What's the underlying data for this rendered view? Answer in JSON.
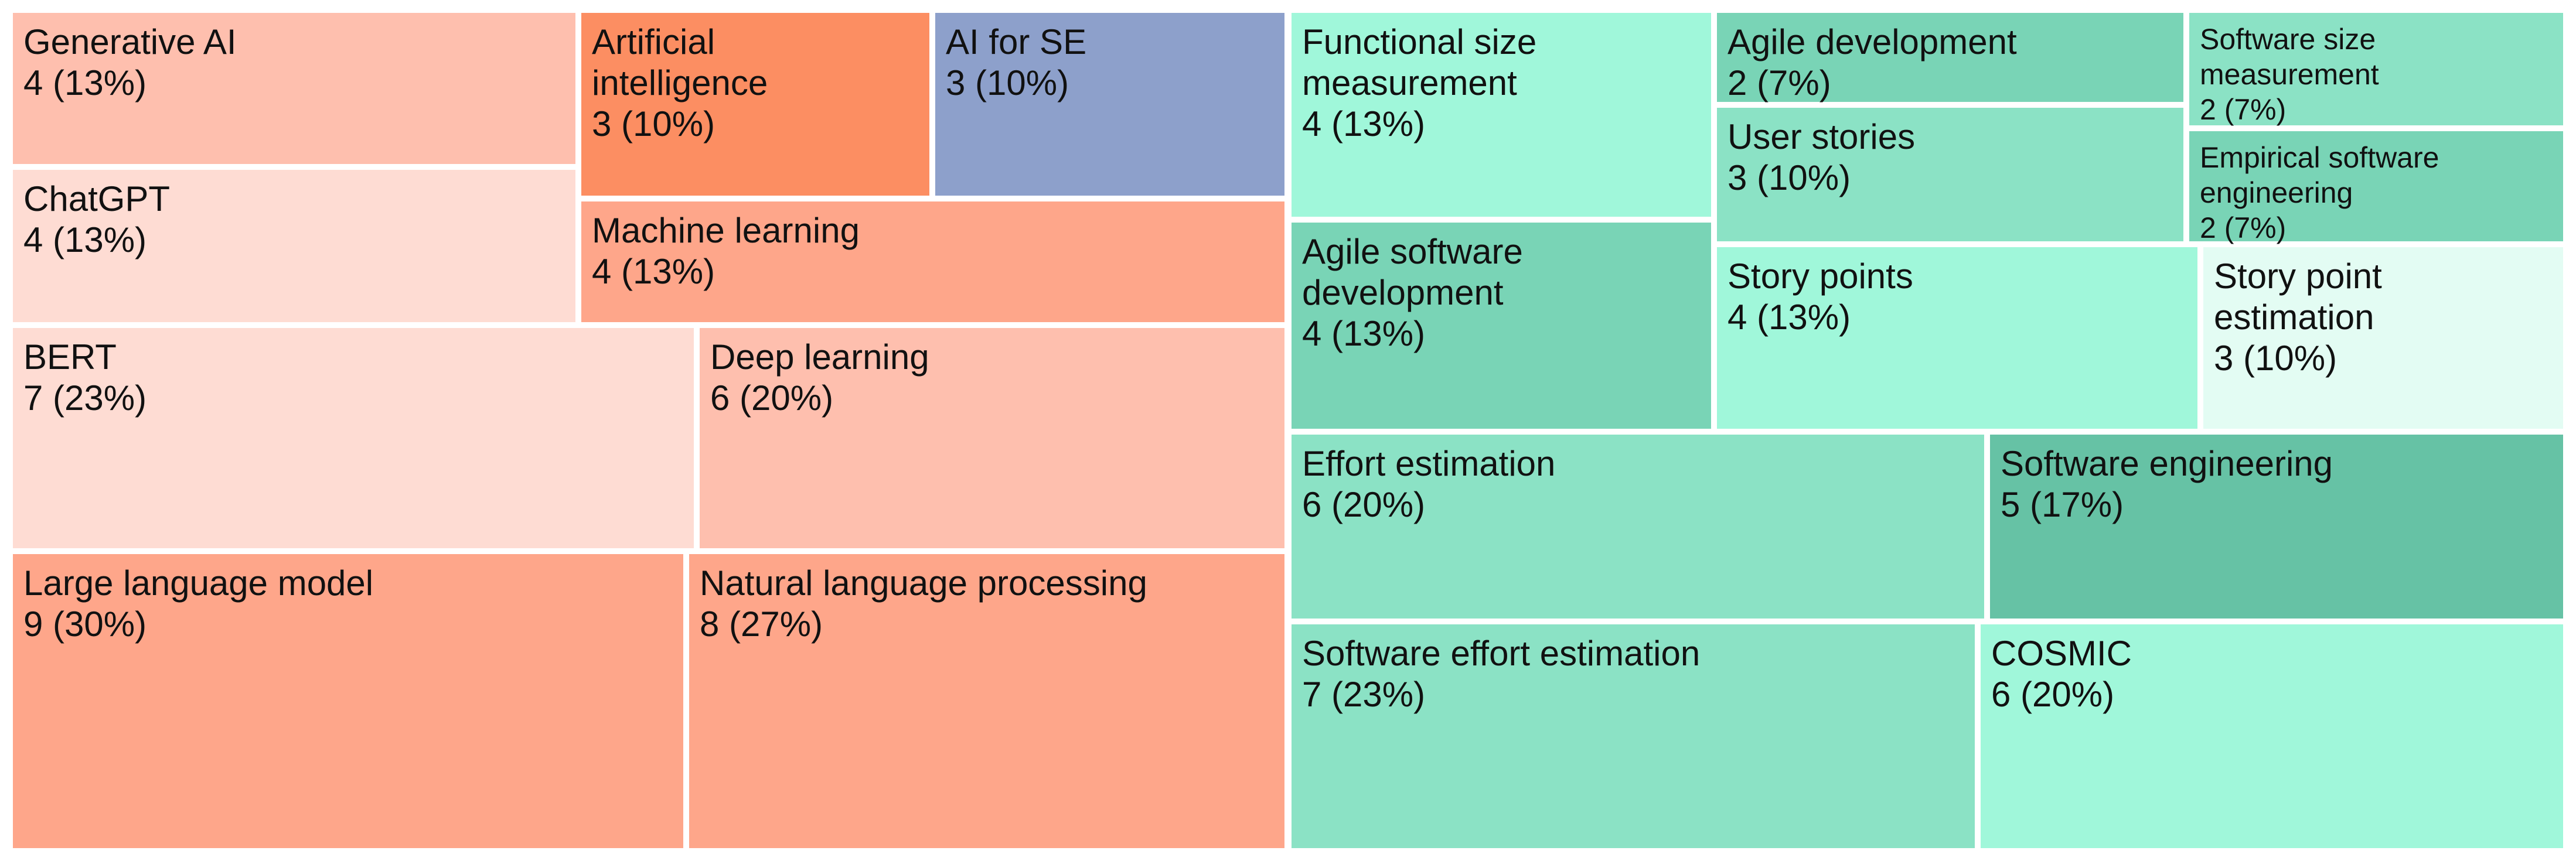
{
  "chart_data": {
    "type": "treemap",
    "title": "",
    "groups": [
      {
        "name": "",
        "tiles": [
          {
            "label": [
              "Generative AI"
            ],
            "value_text": "4  (13%)",
            "value": 4,
            "percent": 13,
            "color": "#FEBFAE"
          },
          {
            "label": [
              "ChatGPT"
            ],
            "value_text": "4  (13%)",
            "value": 4,
            "percent": 13,
            "color": "#FEDCD3"
          },
          {
            "label": [
              "Artificial",
              "intelligence"
            ],
            "value_text": "3  (10%)",
            "value": 3,
            "percent": 10,
            "color": "#FC8E62"
          },
          {
            "label": [
              "AI for SE"
            ],
            "value_text": "3  (10%)",
            "value": 3,
            "percent": 10,
            "color": "#8DA0CB"
          },
          {
            "label": [
              "Machine learning"
            ],
            "value_text": "4  (13%)",
            "value": 4,
            "percent": 13,
            "color": "#FEA68A"
          },
          {
            "label": [
              "BERT"
            ],
            "value_text": "7  (23%)",
            "value": 7,
            "percent": 23,
            "color": "#FEDCD3"
          },
          {
            "label": [
              "Deep learning"
            ],
            "value_text": "6  (20%)",
            "value": 6,
            "percent": 20,
            "color": "#FEBFAE"
          },
          {
            "label": [
              "Large language model"
            ],
            "value_text": "9  (30%)",
            "value": 9,
            "percent": 30,
            "color": "#FEA68A"
          },
          {
            "label": [
              "Natural language processing"
            ],
            "value_text": "8  (27%)",
            "value": 8,
            "percent": 27,
            "color": "#FEA68A"
          }
        ]
      },
      {
        "name": "",
        "tiles": [
          {
            "label": [
              "Functional size",
              "measurement"
            ],
            "value_text": "4  (13%)",
            "value": 4,
            "percent": 13,
            "color": "#A0F7DA"
          },
          {
            "label": [
              "Agile development"
            ],
            "value_text": "2  (7%)",
            "value": 2,
            "percent": 7,
            "color": "#79D4B6"
          },
          {
            "label": [
              "Software size",
              "measurement"
            ],
            "value_text": "2  (7%)",
            "value": 2,
            "percent": 7,
            "color": "#8BE2C5",
            "small": true
          },
          {
            "label": [
              "User stories"
            ],
            "value_text": "3  (10%)",
            "value": 3,
            "percent": 10,
            "color": "#8BE2C5"
          },
          {
            "label": [
              "Empirical software",
              "engineering"
            ],
            "value_text": "2  (7%)",
            "value": 2,
            "percent": 7,
            "color": "#79D4B6",
            "small": true
          },
          {
            "label": [
              "Agile software",
              "development"
            ],
            "value_text": "4  (13%)",
            "value": 4,
            "percent": 13,
            "color": "#79D4B6"
          },
          {
            "label": [
              "Story points"
            ],
            "value_text": "4  (13%)",
            "value": 4,
            "percent": 13,
            "color": "#A0F7DA"
          },
          {
            "label": [
              "Story point",
              "estimation"
            ],
            "value_text": "3  (10%)",
            "value": 3,
            "percent": 10,
            "color": "#E3FCF3"
          },
          {
            "label": [
              "Effort estimation"
            ],
            "value_text": "6  (20%)",
            "value": 6,
            "percent": 20,
            "color": "#8BE2C5"
          },
          {
            "label": [
              "Software engineering"
            ],
            "value_text": "5  (17%)",
            "value": 5,
            "percent": 17,
            "color": "#66C2A5"
          },
          {
            "label": [
              "Software effort estimation"
            ],
            "value_text": "7  (23%)",
            "value": 7,
            "percent": 23,
            "color": "#8BE2C5"
          },
          {
            "label": [
              "COSMIC"
            ],
            "value_text": "6  (20%)",
            "value": 6,
            "percent": 20,
            "color": "#A0F7DA"
          }
        ]
      }
    ]
  }
}
